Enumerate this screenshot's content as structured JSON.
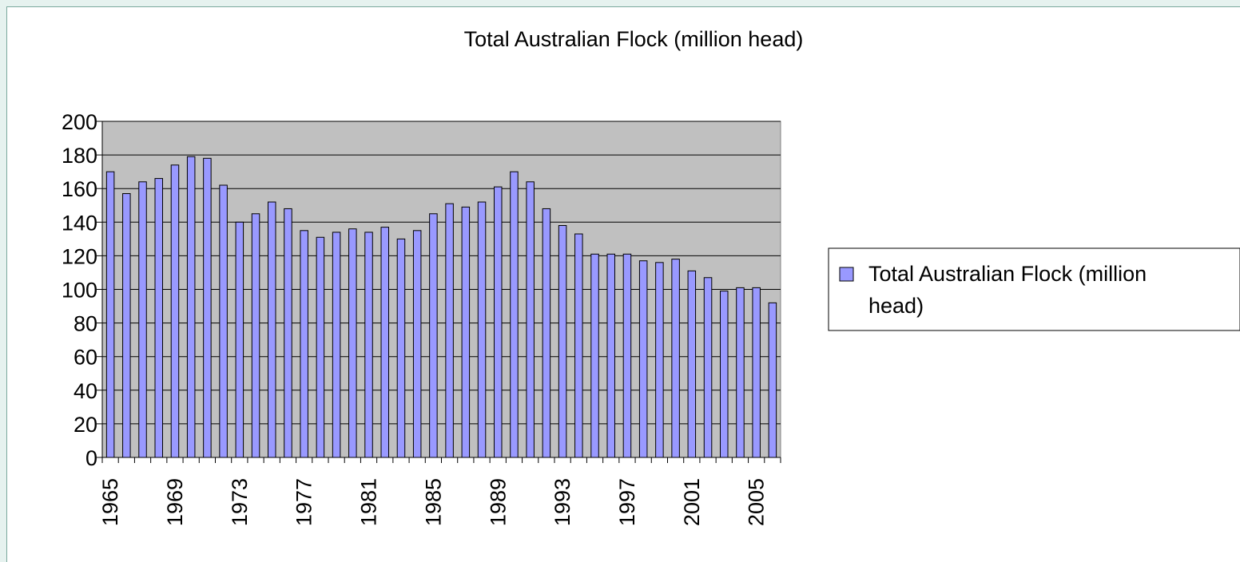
{
  "chart_data": {
    "type": "bar",
    "title": "Total Australian Flock (million head)",
    "xlabel": "",
    "ylabel": "",
    "ylim": [
      0,
      200
    ],
    "y_ticks": [
      0,
      20,
      40,
      60,
      80,
      100,
      120,
      140,
      160,
      180,
      200
    ],
    "x_tick_labels": [
      "1965",
      "1969",
      "1973",
      "1977",
      "1981",
      "1985",
      "1989",
      "1993",
      "1997",
      "2001",
      "2005"
    ],
    "grid": "horizontal",
    "legend": {
      "position": "right",
      "line1": "Total Australian Flock (million",
      "line2": "head)"
    },
    "colors": {
      "bar_fill": "#9999ff",
      "bar_stroke": "#000000",
      "plot_background": "#c0c0c0",
      "page_background": "#e6f2ef"
    },
    "categories": [
      "1965",
      "1966",
      "1967",
      "1968",
      "1969",
      "1970",
      "1971",
      "1972",
      "1973",
      "1974",
      "1975",
      "1976",
      "1977",
      "1978",
      "1979",
      "1980",
      "1981",
      "1982",
      "1983",
      "1984",
      "1985",
      "1986",
      "1987",
      "1988",
      "1989",
      "1990",
      "1991",
      "1992",
      "1993",
      "1994",
      "1995",
      "1996",
      "1997",
      "1998",
      "1999",
      "2000",
      "2001",
      "2002",
      "2003",
      "2004",
      "2005",
      "2006"
    ],
    "series": [
      {
        "name": "Total Australian Flock (million head)",
        "values": [
          170,
          157,
          164,
          166,
          174,
          179,
          178,
          162,
          140,
          145,
          152,
          148,
          135,
          131,
          134,
          136,
          134,
          137,
          130,
          135,
          145,
          151,
          149,
          152,
          161,
          170,
          164,
          148,
          138,
          133,
          121,
          121,
          121,
          117,
          116,
          118,
          111,
          107,
          99,
          101,
          101,
          92
        ]
      }
    ]
  }
}
